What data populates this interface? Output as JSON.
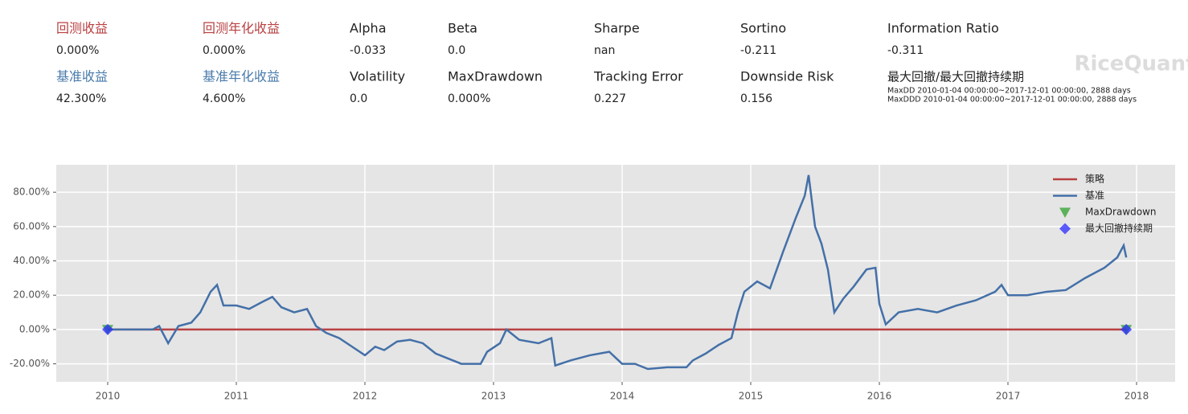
{
  "header": {
    "rows": [
      [
        {
          "label": "回测收益",
          "value": "0.000%"
        },
        {
          "label": "回测年化收益",
          "value": "0.000%"
        },
        {
          "label": "Alpha",
          "value": "-0.033"
        },
        {
          "label": "Beta",
          "value": "0.0"
        },
        {
          "label": "Sharpe",
          "value": "nan"
        },
        {
          "label": "Sortino",
          "value": "-0.211"
        },
        {
          "label": "Information Ratio",
          "value": "-0.311"
        }
      ],
      [
        {
          "label": "基准收益",
          "value": "42.300%"
        },
        {
          "label": "基准年化收益",
          "value": "4.600%"
        },
        {
          "label": "Volatility",
          "value": "0.0"
        },
        {
          "label": "MaxDrawdown",
          "value": "0.000%"
        },
        {
          "label": "Tracking Error",
          "value": "0.227"
        },
        {
          "label": "Downside Risk",
          "value": "0.156"
        }
      ]
    ],
    "max_drawdown": {
      "title": "最大回撤/最大回撤持续期",
      "details": [
        "MaxDD  2010-01-04 00:00:00~2017-12-01 00:00:00, 2888 days",
        "MaxDDD 2010-01-04 00:00:00~2017-12-01 00:00:00, 2888 days"
      ]
    },
    "watermark": "RiceQuant"
  },
  "chart_data": {
    "type": "line",
    "xlim": [
      2009.6,
      2018.3
    ],
    "xticks": [
      2010,
      2011,
      2012,
      2013,
      2014,
      2015,
      2016,
      2017,
      2018
    ],
    "ylim": [
      -30.5,
      96
    ],
    "yticks": [
      {
        "value": -20,
        "label": "-20.00%"
      },
      {
        "value": 0,
        "label": "0.00%"
      },
      {
        "value": 20,
        "label": "20.00%"
      },
      {
        "value": 40,
        "label": "40.00%"
      },
      {
        "value": 60,
        "label": "60.00%"
      },
      {
        "value": 80,
        "label": "80.00%"
      }
    ],
    "grid": true,
    "legend": "upper right",
    "series": [
      {
        "name": "策略",
        "color": "#b94042",
        "marker": "line",
        "x": [
          2010.0,
          2017.92
        ],
        "values": [
          0,
          0
        ]
      },
      {
        "name": "基准",
        "color": "#4470a8",
        "marker": "line",
        "x": [
          2010.0,
          2010.35,
          2010.4,
          2010.47,
          2010.55,
          2010.65,
          2010.72,
          2010.8,
          2010.85,
          2010.9,
          2011.0,
          2011.1,
          2011.2,
          2011.28,
          2011.35,
          2011.45,
          2011.55,
          2011.62,
          2011.7,
          2011.8,
          2011.9,
          2012.0,
          2012.08,
          2012.15,
          2012.25,
          2012.35,
          2012.45,
          2012.55,
          2012.65,
          2012.75,
          2012.9,
          2012.95,
          2013.05,
          2013.1,
          2013.2,
          2013.35,
          2013.45,
          2013.48,
          2013.6,
          2013.75,
          2013.9,
          2014.0,
          2014.1,
          2014.2,
          2014.35,
          2014.5,
          2014.55,
          2014.65,
          2014.75,
          2014.85,
          2014.9,
          2014.95,
          2015.05,
          2015.15,
          2015.25,
          2015.35,
          2015.42,
          2015.45,
          2015.5,
          2015.55,
          2015.6,
          2015.65,
          2015.72,
          2015.8,
          2015.9,
          2015.97,
          2016.0,
          2016.05,
          2016.15,
          2016.3,
          2016.45,
          2016.6,
          2016.75,
          2016.9,
          2016.95,
          2017.0,
          2017.15,
          2017.3,
          2017.45,
          2017.6,
          2017.75,
          2017.85,
          2017.9,
          2017.92
        ],
        "values": [
          0,
          0,
          2,
          -8,
          2,
          4,
          10,
          22,
          26,
          14,
          14,
          12,
          16,
          19,
          13,
          10,
          12,
          2,
          -2,
          -5,
          -10,
          -15,
          -10,
          -12,
          -7,
          -6,
          -8,
          -14,
          -17,
          -20,
          -20,
          -13,
          -8,
          0,
          -6,
          -8,
          -5,
          -21,
          -18,
          -15,
          -13,
          -20,
          -20,
          -23,
          -22,
          -22,
          -18,
          -14,
          -9,
          -5,
          10,
          22,
          28,
          24,
          45,
          65,
          78,
          90,
          60,
          50,
          35,
          10,
          18,
          25,
          35,
          36,
          15,
          3,
          10,
          12,
          10,
          14,
          17,
          22,
          26,
          20,
          20,
          22,
          23,
          30,
          36,
          42,
          49,
          42
        ]
      },
      {
        "name": "MaxDrawdown",
        "color": "#2ca02c",
        "marker": "triangle",
        "x": [
          2010.0,
          2017.92
        ],
        "values": [
          0,
          0
        ]
      },
      {
        "name": "最大回撤持续期",
        "color": "#2a2aff",
        "marker": "diamond",
        "x": [
          2010.0,
          2017.92
        ],
        "values": [
          0,
          0
        ]
      }
    ]
  }
}
